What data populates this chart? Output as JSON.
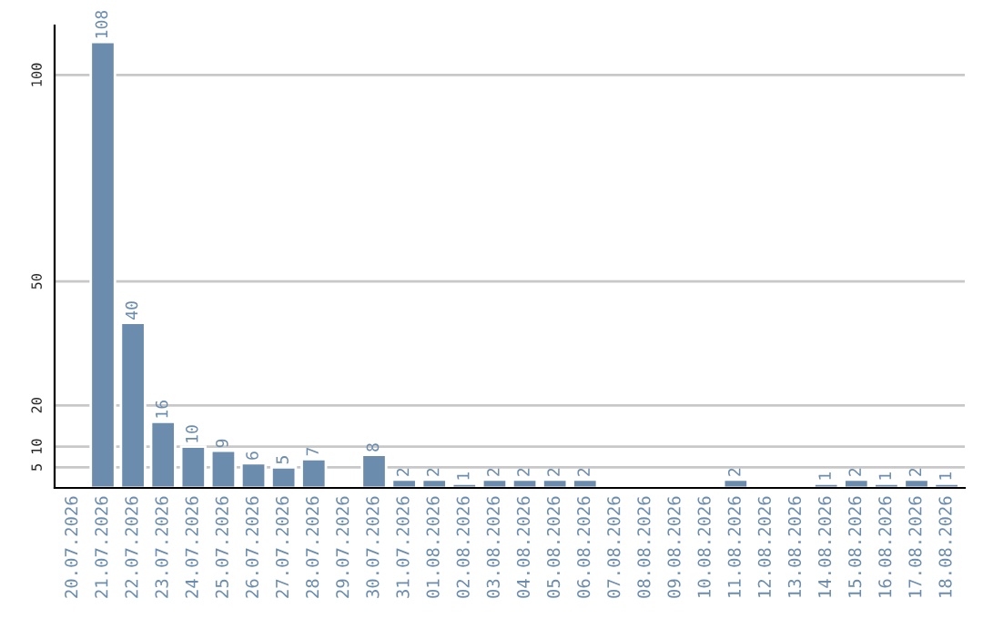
{
  "chart_data": {
    "type": "bar",
    "categories": [
      "20.07.2026",
      "21.07.2026",
      "22.07.2026",
      "23.07.2026",
      "24.07.2026",
      "25.07.2026",
      "26.07.2026",
      "27.07.2026",
      "28.07.2026",
      "29.07.2026",
      "30.07.2026",
      "31.07.2026",
      "01.08.2026",
      "02.08.2026",
      "03.08.2026",
      "04.08.2026",
      "05.08.2026",
      "06.08.2026",
      "07.08.2026",
      "08.08.2026",
      "09.08.2026",
      "10.08.2026",
      "11.08.2026",
      "12.08.2026",
      "13.08.2026",
      "14.08.2026",
      "15.08.2026",
      "16.08.2026",
      "17.08.2026",
      "18.08.2026"
    ],
    "values": [
      null,
      108,
      40,
      16,
      10,
      9,
      6,
      5,
      7,
      null,
      8,
      2,
      2,
      1,
      2,
      2,
      2,
      2,
      null,
      null,
      null,
      null,
      2,
      null,
      null,
      1,
      2,
      1,
      2,
      1
    ],
    "color": "#6b8cad",
    "ylim": [
      0,
      112
    ],
    "yticks": [
      5,
      10,
      20,
      50,
      100
    ],
    "grid": "y",
    "data_labels": true
  }
}
